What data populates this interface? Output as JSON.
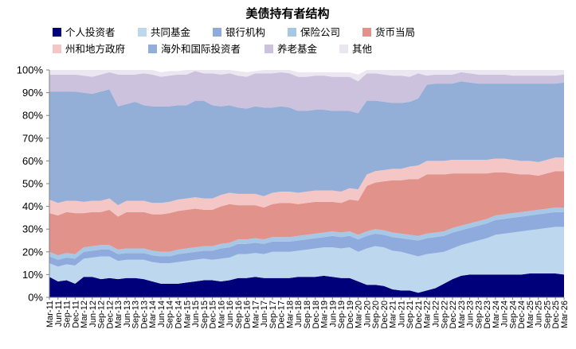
{
  "chart_data": {
    "type": "area",
    "stacked": true,
    "percent": true,
    "title": "美债持有者结构",
    "ylim": [
      0,
      100
    ],
    "yticks": [
      "0%",
      "10%",
      "20%",
      "30%",
      "40%",
      "50%",
      "60%",
      "70%",
      "80%",
      "90%",
      "100%"
    ],
    "grid": false,
    "legend_position": "top",
    "legend_row1": [
      "个人投资者",
      "共同基金",
      "银行机构",
      "保险公司",
      "货币当局"
    ],
    "legend_row2": [
      "州和地方政府",
      "海外和国际投资者",
      "养老基金",
      "其他"
    ],
    "x": [
      "Mar-11",
      "Jun-11",
      "Sep-11",
      "Dec-11",
      "Mar-12",
      "Jun-12",
      "Sep-12",
      "Dec-12",
      "Mar-13",
      "Jun-13",
      "Sep-13",
      "Dec-13",
      "Mar-14",
      "Jun-14",
      "Sep-14",
      "Dec-14",
      "Mar-15",
      "Jun-15",
      "Sep-15",
      "Dec-15",
      "Mar-16",
      "Jun-16",
      "Sep-16",
      "Dec-16",
      "Mar-17",
      "Jun-17",
      "Sep-17",
      "Dec-17",
      "Mar-18",
      "Jun-18",
      "Sep-18",
      "Dec-18",
      "Mar-19",
      "Jun-19",
      "Sep-19",
      "Dec-19",
      "Mar-20",
      "Jun-20",
      "Sep-20",
      "Dec-20",
      "Mar-21",
      "Jun-21",
      "Sep-21",
      "Dec-21",
      "Mar-22",
      "Jun-22",
      "Sep-22",
      "Dec-22",
      "Mar-23",
      "Jun-23",
      "Sep-23",
      "Dec-23",
      "Mar-24",
      "Jun-24",
      "Sep-24",
      "Dec-24",
      "Mar-25",
      "Jun-25",
      "Sep-25",
      "Dec-25",
      "Mar-26"
    ],
    "x_labels": [
      "Mar-11",
      "Jun-11",
      "Sep-11",
      "Dec-11",
      "Mar-12",
      "Jun-12",
      "Sep-12",
      "Dec-12",
      "Mar-13",
      "Jun-13",
      "Sep-13",
      "Dec-13",
      "Mar-14",
      "Jun-14",
      "Sep-14",
      "Dec-14",
      "Mar-15",
      "Jun-15",
      "Sep-15",
      "Dec-15",
      "Mar-16",
      "Jun-16",
      "Sep-16",
      "Dec-16",
      "Mar-17",
      "Jun-17",
      "Sep-17",
      "Dec-17",
      "Mar-18",
      "Jun-18",
      "Sep-18",
      "Dec-18",
      "Mar-19",
      "Jun-19",
      "Sep-19",
      "Dec-19",
      "Mar-20",
      "Jun-20",
      "Sep-20",
      "Dec-20",
      "Mar-21",
      "Jun-21",
      "Sep-21",
      "Dec-21",
      "Mar-22",
      "Jun-22",
      "Sep-22",
      "Dec-22",
      "Mar-23",
      "Jun-23",
      "Sep-23",
      "Dec-23",
      "Mar-24",
      "Jun-24",
      "Sep-24",
      "Dec-24",
      "Mar-25",
      "Jun-25",
      "Sep-25",
      "Dec-25",
      "Mar-26"
    ],
    "series": [
      {
        "name": "个人投资者",
        "color": "#00007A",
        "values": [
          9.0,
          7.0,
          7.5,
          6.0,
          9.0,
          9.0,
          8.0,
          8.5,
          8.0,
          8.5,
          8.5,
          8.0,
          7.0,
          6.0,
          6.0,
          6.0,
          6.5,
          7.0,
          7.5,
          7.5,
          7.0,
          7.5,
          8.5,
          8.5,
          9.0,
          8.5,
          8.5,
          8.5,
          8.5,
          9.0,
          9.0,
          9.0,
          9.5,
          9.0,
          8.5,
          8.5,
          7.0,
          5.5,
          5.5,
          5.0,
          3.5,
          3.0,
          3.0,
          2.0,
          3.0,
          4.0,
          6.0,
          8.0,
          9.5,
          10.0,
          10.0,
          10.0,
          10.0,
          10.0,
          10.0,
          10.0,
          10.5,
          10.5,
          10.5,
          10.5,
          10.0
        ]
      },
      {
        "name": "共同基金",
        "color": "#BDD7EE",
        "values": [
          6.0,
          6.5,
          7.0,
          8.0,
          8.0,
          8.5,
          10.0,
          9.5,
          8.0,
          8.0,
          8.0,
          8.5,
          8.5,
          9.0,
          9.0,
          9.5,
          9.5,
          9.5,
          9.5,
          9.0,
          10.0,
          10.0,
          10.5,
          10.5,
          10.5,
          10.5,
          11.5,
          11.5,
          11.5,
          11.5,
          12.0,
          12.5,
          12.5,
          13.0,
          13.0,
          13.5,
          13.0,
          16.0,
          17.0,
          17.0,
          17.0,
          17.0,
          16.0,
          16.0,
          16.0,
          15.5,
          14.0,
          13.5,
          13.5,
          14.0,
          15.0,
          16.0,
          17.5,
          18.0,
          18.5,
          19.0,
          19.0,
          19.5,
          20.0,
          20.5,
          21.0
        ]
      },
      {
        "name": "银行机构",
        "color": "#8FAADC",
        "values": [
          3.0,
          3.0,
          3.0,
          3.0,
          3.0,
          3.0,
          3.0,
          3.0,
          3.0,
          3.0,
          3.0,
          3.0,
          3.0,
          3.0,
          3.0,
          3.5,
          3.5,
          3.5,
          3.5,
          4.0,
          4.5,
          4.5,
          4.5,
          4.5,
          4.5,
          4.5,
          4.5,
          4.5,
          4.5,
          4.5,
          4.5,
          4.5,
          4.5,
          5.0,
          5.0,
          5.0,
          5.5,
          5.5,
          5.5,
          5.5,
          6.0,
          6.0,
          6.5,
          7.0,
          7.0,
          7.0,
          7.0,
          7.0,
          6.5,
          6.5,
          6.5,
          6.5,
          6.5,
          6.5,
          6.5,
          6.5,
          6.5,
          6.5,
          6.5,
          6.5,
          6.5
        ]
      },
      {
        "name": "保险公司",
        "color": "#A6C8E6",
        "values": [
          2.0,
          2.0,
          2.0,
          2.0,
          2.0,
          2.0,
          2.0,
          2.0,
          2.0,
          2.0,
          2.0,
          2.0,
          2.0,
          2.0,
          2.0,
          2.0,
          2.0,
          2.0,
          2.0,
          2.0,
          2.0,
          2.0,
          2.0,
          2.0,
          2.0,
          2.0,
          2.0,
          2.0,
          2.0,
          2.0,
          2.0,
          2.0,
          2.0,
          2.0,
          2.0,
          2.0,
          2.0,
          2.0,
          2.0,
          2.0,
          2.0,
          2.0,
          2.0,
          2.0,
          2.0,
          2.0,
          2.0,
          2.0,
          2.0,
          2.0,
          2.0,
          2.0,
          2.0,
          2.0,
          2.0,
          2.0,
          2.0,
          2.0,
          2.0,
          2.0,
          2.0
        ]
      },
      {
        "name": "货币当局",
        "color": "#E1928B",
        "values": [
          17.0,
          17.5,
          18.0,
          18.0,
          15.0,
          15.0,
          14.5,
          15.5,
          14.5,
          16.0,
          16.0,
          16.0,
          16.0,
          16.5,
          17.0,
          17.0,
          17.0,
          17.0,
          16.0,
          16.0,
          16.5,
          17.0,
          15.0,
          15.0,
          14.5,
          14.0,
          14.5,
          15.0,
          15.0,
          14.0,
          14.0,
          14.0,
          13.5,
          13.0,
          13.0,
          14.0,
          15.0,
          20.0,
          20.5,
          21.5,
          23.0,
          23.5,
          24.5,
          25.0,
          26.0,
          25.5,
          25.0,
          24.0,
          23.0,
          22.0,
          21.0,
          20.0,
          19.0,
          18.5,
          17.5,
          16.5,
          16.0,
          15.0,
          15.5,
          16.0,
          16.0
        ]
      },
      {
        "name": "州和地方政府",
        "color": "#F4C6C6",
        "values": [
          6.0,
          5.5,
          5.0,
          5.5,
          5.0,
          5.0,
          5.0,
          5.0,
          5.0,
          5.0,
          5.0,
          5.0,
          5.0,
          5.0,
          5.0,
          5.0,
          5.0,
          5.0,
          5.0,
          5.0,
          5.0,
          5.0,
          5.0,
          5.0,
          5.0,
          5.0,
          5.0,
          5.0,
          5.0,
          5.0,
          5.0,
          5.0,
          5.0,
          5.0,
          5.0,
          5.0,
          5.0,
          5.0,
          5.0,
          5.0,
          5.0,
          5.0,
          5.5,
          6.0,
          6.0,
          6.0,
          6.0,
          6.0,
          6.0,
          6.0,
          6.0,
          6.0,
          6.0,
          6.0,
          6.0,
          6.0,
          6.0,
          6.0,
          6.0,
          6.0,
          6.0
        ]
      },
      {
        "name": "海外和国际投资者",
        "color": "#93AFD8",
        "values": [
          47.5,
          49.0,
          48.0,
          48.0,
          48.0,
          47.0,
          48.0,
          48.0,
          43.5,
          42.5,
          43.5,
          42.0,
          42.5,
          42.5,
          42.0,
          41.5,
          41.0,
          42.5,
          43.0,
          41.0,
          39.0,
          38.5,
          38.0,
          37.5,
          38.5,
          39.0,
          37.5,
          37.5,
          37.0,
          36.0,
          35.5,
          35.5,
          35.5,
          35.0,
          35.5,
          34.0,
          33.5,
          32.5,
          31.0,
          30.0,
          29.0,
          29.0,
          28.5,
          29.5,
          33.5,
          34.0,
          34.0,
          33.5,
          34.5,
          34.0,
          33.5,
          33.5,
          33.0,
          33.0,
          33.5,
          34.0,
          34.0,
          34.5,
          33.5,
          32.5,
          33.0
        ]
      },
      {
        "name": "养老基金",
        "color": "#CDC2DE",
        "values": [
          7.5,
          7.5,
          7.5,
          7.5,
          7.5,
          7.5,
          7.5,
          7.5,
          14.0,
          13.0,
          12.0,
          14.0,
          14.0,
          13.0,
          13.5,
          13.5,
          13.5,
          13.0,
          12.0,
          14.0,
          14.0,
          14.0,
          14.0,
          14.0,
          14.5,
          15.0,
          15.0,
          15.0,
          15.0,
          15.0,
          15.0,
          15.0,
          15.0,
          15.0,
          15.0,
          15.0,
          14.0,
          12.0,
          12.0,
          12.0,
          12.0,
          12.0,
          11.0,
          11.0,
          4.0,
          4.0,
          4.0,
          4.0,
          4.0,
          4.0,
          4.0,
          4.0,
          4.0,
          4.0,
          3.5,
          3.5,
          3.5,
          3.5,
          3.5,
          3.5,
          3.5
        ]
      },
      {
        "name": "其他",
        "color": "#EAE7F1",
        "values": [
          2.0,
          2.0,
          2.0,
          2.0,
          2.5,
          3.0,
          2.0,
          1.0,
          2.0,
          2.0,
          2.0,
          1.5,
          2.0,
          2.0,
          2.0,
          1.5,
          2.0,
          1.5,
          2.0,
          1.5,
          2.0,
          1.5,
          2.0,
          2.0,
          1.0,
          1.5,
          1.5,
          1.0,
          1.5,
          2.0,
          2.0,
          1.5,
          1.5,
          2.0,
          2.0,
          2.0,
          3.0,
          2.5,
          1.5,
          2.0,
          2.5,
          2.5,
          3.0,
          1.5,
          2.5,
          2.0,
          2.0,
          2.0,
          1.0,
          1.5,
          2.0,
          2.0,
          2.0,
          2.0,
          2.5,
          2.5,
          2.5,
          2.5,
          2.5,
          2.5,
          2.5
        ]
      }
    ]
  }
}
